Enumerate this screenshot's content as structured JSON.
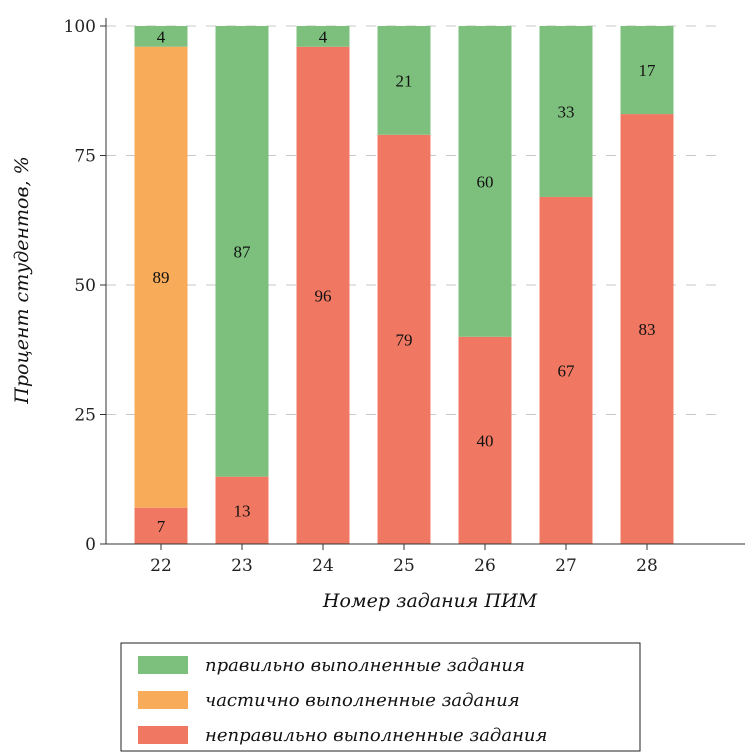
{
  "chart_data": {
    "type": "bar",
    "stacked": true,
    "xlabel": "Номер задания ПИМ",
    "ylabel": "Процент студентов, %",
    "categories": [
      "22",
      "23",
      "24",
      "25",
      "26",
      "27",
      "28"
    ],
    "ylim": [
      0,
      100
    ],
    "yticks": [
      0,
      25,
      50,
      75,
      100
    ],
    "grid": "horizontal dashed",
    "legend_position": "bottom",
    "series": [
      {
        "key": "wrong",
        "name": "неправильно выполненные задания",
        "color": "#f07862",
        "values": [
          7,
          13,
          96,
          79,
          40,
          67,
          83
        ]
      },
      {
        "key": "partial",
        "name": "частично выполненные задания",
        "color": "#f8ab59",
        "values": [
          89,
          0,
          0,
          0,
          0,
          0,
          0
        ]
      },
      {
        "key": "correct",
        "name": "правильно выполненные задания",
        "color": "#7dc07d",
        "values": [
          4,
          87,
          4,
          21,
          60,
          33,
          17
        ]
      }
    ],
    "legend_order": [
      "correct",
      "partial",
      "wrong"
    ]
  }
}
